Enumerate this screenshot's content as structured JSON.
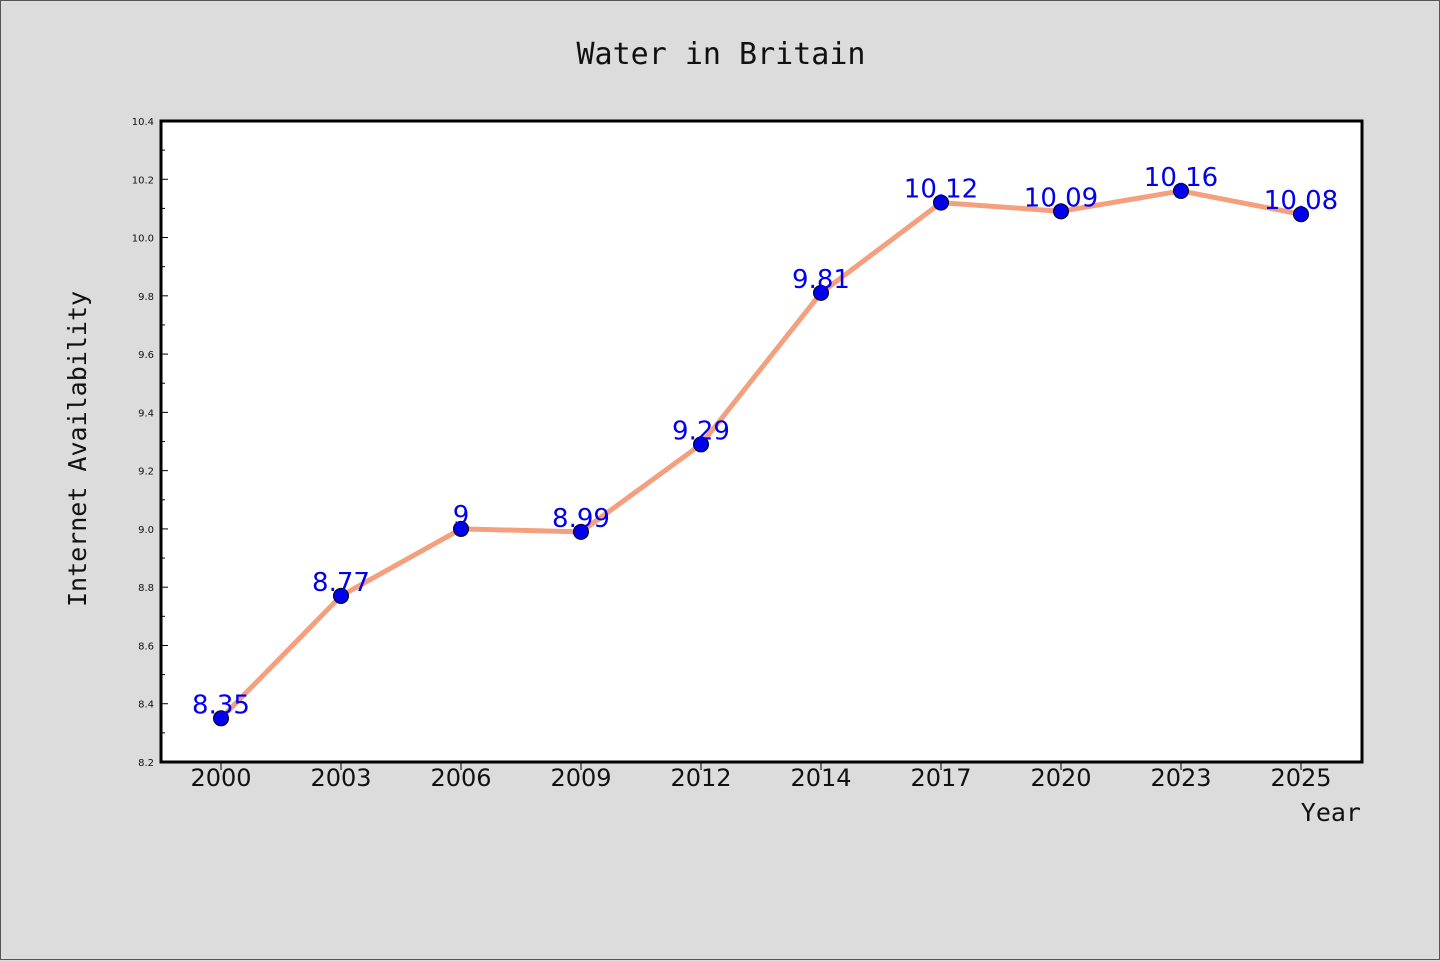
{
  "chart_data": {
    "type": "line",
    "title": "Water in Britain",
    "xlabel": "Year",
    "ylabel": "Internet Availability",
    "categories": [
      "2000",
      "2003",
      "2006",
      "2009",
      "2012",
      "2014",
      "2017",
      "2020",
      "2023",
      "2025"
    ],
    "series": [
      {
        "values": [
          8.35,
          8.77,
          9,
          8.99,
          9.29,
          9.81,
          10.12,
          10.09,
          10.16,
          10.08
        ],
        "line_color": "#f4a07e",
        "marker_color": "#0000ee",
        "label_color": "#0000ee"
      }
    ],
    "ylim": [
      8.2,
      10.4
    ],
    "yticks": [
      "8.2",
      "8.4",
      "8.6",
      "8.8",
      "9.0",
      "9.2",
      "9.4",
      "9.6",
      "9.8",
      "10.0",
      "10.2",
      "10.4"
    ],
    "grid": false,
    "legend": "none"
  }
}
